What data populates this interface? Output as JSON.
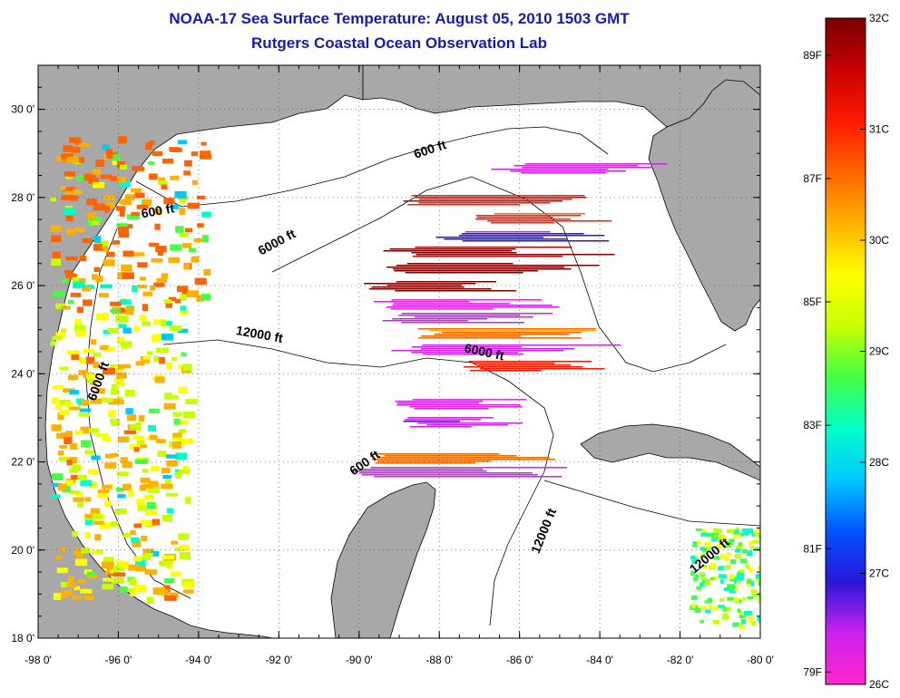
{
  "title": "NOAA-17 Sea Surface Temperature:  August 05, 2010 1503 GMT",
  "subtitle": "Rutgers Coastal Ocean Observation Lab",
  "map": {
    "lon_range": [
      -98,
      -80
    ],
    "lat_range": [
      18,
      31
    ],
    "x_ticks": [
      {
        "lon": -98,
        "label": "-98 0'"
      },
      {
        "lon": -96,
        "label": "-96 0'"
      },
      {
        "lon": -94,
        "label": "-94 0'"
      },
      {
        "lon": -92,
        "label": "-92 0'"
      },
      {
        "lon": -90,
        "label": "-90 0'"
      },
      {
        "lon": -88,
        "label": "-88 0'"
      },
      {
        "lon": -86,
        "label": "-86 0'"
      },
      {
        "lon": -84,
        "label": "-84 0'"
      },
      {
        "lon": -82,
        "label": "-82 0'"
      },
      {
        "lon": -80,
        "label": "-80 0'"
      }
    ],
    "y_ticks": [
      {
        "lat": 30,
        "label": "30 0'"
      },
      {
        "lat": 28,
        "label": "28 0'"
      },
      {
        "lat": 26,
        "label": "26 0'"
      },
      {
        "lat": 24,
        "label": "24 0'"
      },
      {
        "lat": 22,
        "label": "22 0'"
      },
      {
        "lat": 20,
        "label": "20 0'"
      },
      {
        "lat": 18,
        "label": "18 0'"
      }
    ],
    "grid": "dotted",
    "contour_labels": [
      {
        "text": "600 ft",
        "lon": -88.2,
        "lat": 29.0,
        "angle": -18
      },
      {
        "text": "600 ft",
        "lon": -95.0,
        "lat": 27.6,
        "angle": -10
      },
      {
        "text": "6000 ft",
        "lon": -92.0,
        "lat": 26.9,
        "angle": -28
      },
      {
        "text": "12000 ft",
        "lon": -92.5,
        "lat": 24.8,
        "angle": 10
      },
      {
        "text": "6000 ft",
        "lon": -96.4,
        "lat": 23.8,
        "angle": -70
      },
      {
        "text": "6000 ft",
        "lon": -86.9,
        "lat": 24.4,
        "angle": 12
      },
      {
        "text": "600 ft",
        "lon": -89.8,
        "lat": 21.9,
        "angle": -35
      },
      {
        "text": "12000 ft",
        "lon": -85.3,
        "lat": 20.4,
        "angle": -68
      },
      {
        "text": "12000 ft",
        "lon": -81.2,
        "lat": 19.8,
        "angle": -40
      }
    ]
  },
  "colorbar": {
    "celsius_min": 26,
    "celsius_max": 32,
    "celsius_labels": [
      {
        "value": 32,
        "label": "32C"
      },
      {
        "value": 31,
        "label": "31C"
      },
      {
        "value": 30,
        "label": "30C"
      },
      {
        "value": 29,
        "label": "29C"
      },
      {
        "value": 28,
        "label": "28C"
      },
      {
        "value": 27,
        "label": "27C"
      },
      {
        "value": 26,
        "label": "26C"
      }
    ],
    "fahrenheit_labels": [
      {
        "value": 89,
        "label": "89F"
      },
      {
        "value": 87,
        "label": "87F"
      },
      {
        "value": 85,
        "label": "85F"
      },
      {
        "value": 83,
        "label": "83F"
      },
      {
        "value": 81,
        "label": "81F"
      },
      {
        "value": 79,
        "label": "79F"
      }
    ],
    "stops": [
      "#ff26d0",
      "#cc22ee",
      "#2a16d8",
      "#0055ff",
      "#00c8ff",
      "#00ffc8",
      "#44ff44",
      "#c8ff00",
      "#ffff00",
      "#ffb000",
      "#ff6400",
      "#ff1a00",
      "#c80000",
      "#7a0000"
    ]
  },
  "colors": {
    "land": "#a8a8a8",
    "ocean": "#ffffff",
    "coast": "#000000",
    "title": "#1a1aa6"
  }
}
